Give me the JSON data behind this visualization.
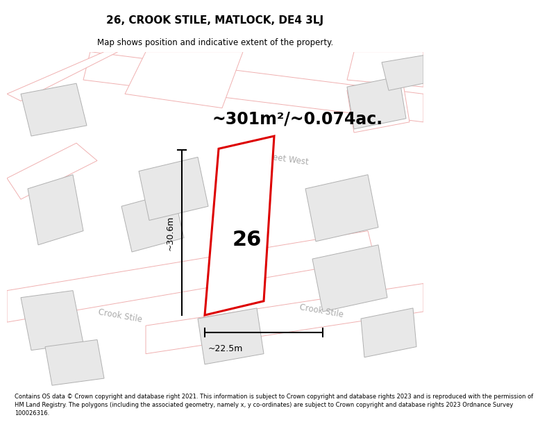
{
  "title": "26, CROOK STILE, MATLOCK, DE4 3LJ",
  "subtitle": "Map shows position and indicative extent of the property.",
  "area_text": "~301m²/~0.074ac.",
  "dim1_text": "~30.6m",
  "dim2_text": "~22.5m",
  "property_number": "26",
  "footer_text": "Contains OS data © Crown copyright and database right 2021. This information is subject to Crown copyright and database rights 2023 and is reproduced with the permission of HM Land Registry. The polygons (including the associated geometry, namely x, y co-ordinates) are subject to Crown copyright and database rights 2023 Ordnance Survey 100026316.",
  "background_color": "#ffffff",
  "map_background": "#ffffff",
  "building_color": "#e8e8e8",
  "building_edge": "#b0b0b0",
  "property_fill": "#ffffff",
  "property_edge": "#dd0000",
  "road_outline_color": "#f0b0b0",
  "title_color": "#000000",
  "text_color": "#000000",
  "street_label_color": "#aaaaaa",
  "dim_line_color": "#000000",
  "title_fontsize": 11,
  "subtitle_fontsize": 8.5,
  "area_fontsize": 17,
  "number_fontsize": 22,
  "street_fontsize": 8.5,
  "dim_fontsize": 9,
  "footer_fontsize": 6.0
}
